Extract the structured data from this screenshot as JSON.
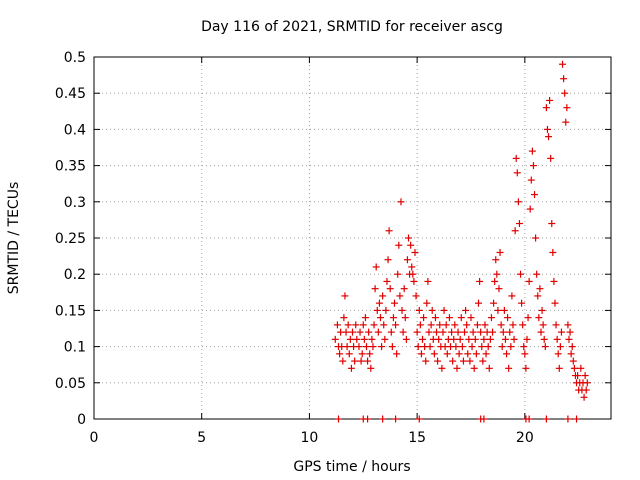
{
  "chart_data": {
    "type": "scatter",
    "title": "Day 116 of 2021, SRMTID for receiver ascg",
    "xlabel": "GPS time / hours",
    "ylabel": "SRMTID / TECUs",
    "xlim": [
      0,
      24
    ],
    "ylim": [
      0,
      0.5
    ],
    "x_ticks": [
      0,
      5,
      10,
      15,
      20
    ],
    "x_tick_labels": [
      "0",
      "5",
      "10",
      "15",
      "20"
    ],
    "y_ticks": [
      0,
      0.05,
      0.1,
      0.15,
      0.2,
      0.25,
      0.3,
      0.35,
      0.4,
      0.45,
      0.5
    ],
    "y_tick_labels": [
      "0",
      "0.05",
      "0.1",
      "0.15",
      "0.2",
      "0.25",
      "0.3",
      "0.35",
      "0.4",
      "0.45",
      "0.5"
    ],
    "grid": true,
    "marker": "plus",
    "color": "#e00000",
    "series": [
      {
        "name": "SRMTID",
        "points": [
          [
            11.2,
            0.11
          ],
          [
            11.3,
            0.13
          ],
          [
            11.35,
            0.1
          ],
          [
            11.4,
            0.09
          ],
          [
            11.45,
            0.12
          ],
          [
            11.5,
            0.1
          ],
          [
            11.55,
            0.08
          ],
          [
            11.6,
            0.14
          ],
          [
            11.65,
            0.17
          ],
          [
            11.7,
            0.12
          ],
          [
            11.75,
            0.1
          ],
          [
            11.8,
            0.13
          ],
          [
            11.85,
            0.09
          ],
          [
            11.9,
            0.11
          ],
          [
            11.95,
            0.07
          ],
          [
            12.0,
            0.12
          ],
          [
            12.05,
            0.1
          ],
          [
            12.1,
            0.08
          ],
          [
            12.15,
            0.13
          ],
          [
            12.2,
            0.11
          ],
          [
            12.3,
            0.1
          ],
          [
            12.35,
            0.12
          ],
          [
            12.4,
            0.08
          ],
          [
            12.45,
            0.09
          ],
          [
            12.5,
            0.13
          ],
          [
            12.55,
            0.11
          ],
          [
            12.6,
            0.14
          ],
          [
            12.65,
            0.1
          ],
          [
            12.7,
            0.08
          ],
          [
            12.75,
            0.12
          ],
          [
            12.8,
            0.09
          ],
          [
            12.85,
            0.07
          ],
          [
            12.9,
            0.11
          ],
          [
            12.95,
            0.1
          ],
          [
            13.0,
            0.13
          ],
          [
            13.05,
            0.18
          ],
          [
            13.1,
            0.21
          ],
          [
            13.15,
            0.15
          ],
          [
            13.2,
            0.12
          ],
          [
            13.25,
            0.16
          ],
          [
            13.3,
            0.14
          ],
          [
            13.35,
            0.1
          ],
          [
            13.4,
            0.17
          ],
          [
            13.45,
            0.13
          ],
          [
            13.5,
            0.11
          ],
          [
            13.55,
            0.15
          ],
          [
            13.6,
            0.19
          ],
          [
            13.65,
            0.22
          ],
          [
            13.7,
            0.26
          ],
          [
            13.75,
            0.18
          ],
          [
            13.8,
            0.12
          ],
          [
            13.85,
            0.1
          ],
          [
            13.9,
            0.14
          ],
          [
            13.95,
            0.16
          ],
          [
            14.0,
            0.13
          ],
          [
            14.05,
            0.09
          ],
          [
            14.1,
            0.2
          ],
          [
            14.15,
            0.24
          ],
          [
            14.2,
            0.17
          ],
          [
            14.25,
            0.3
          ],
          [
            14.3,
            0.15
          ],
          [
            14.35,
            0.12
          ],
          [
            14.4,
            0.18
          ],
          [
            14.45,
            0.14
          ],
          [
            14.5,
            0.11
          ],
          [
            14.55,
            0.22
          ],
          [
            14.6,
            0.25
          ],
          [
            14.65,
            0.2
          ],
          [
            14.7,
            0.24
          ],
          [
            14.75,
            0.21
          ],
          [
            14.8,
            0.2
          ],
          [
            14.85,
            0.19
          ],
          [
            14.9,
            0.23
          ],
          [
            14.95,
            0.17
          ],
          [
            15.0,
            0.12
          ],
          [
            15.05,
            0.1
          ],
          [
            15.1,
            0.15
          ],
          [
            15.15,
            0.13
          ],
          [
            15.2,
            0.09
          ],
          [
            15.25,
            0.11
          ],
          [
            15.3,
            0.14
          ],
          [
            15.35,
            0.1
          ],
          [
            15.4,
            0.08
          ],
          [
            15.45,
            0.16
          ],
          [
            15.5,
            0.19
          ],
          [
            15.55,
            0.12
          ],
          [
            15.6,
            0.1
          ],
          [
            15.65,
            0.13
          ],
          [
            15.7,
            0.15
          ],
          [
            15.75,
            0.11
          ],
          [
            15.8,
            0.09
          ],
          [
            15.85,
            0.14
          ],
          [
            15.9,
            0.12
          ],
          [
            15.95,
            0.08
          ],
          [
            16.0,
            0.11
          ],
          [
            16.05,
            0.13
          ],
          [
            16.1,
            0.1
          ],
          [
            16.15,
            0.07
          ],
          [
            16.2,
            0.12
          ],
          [
            16.25,
            0.15
          ],
          [
            16.3,
            0.1
          ],
          [
            16.35,
            0.13
          ],
          [
            16.4,
            0.09
          ],
          [
            16.45,
            0.11
          ],
          [
            16.5,
            0.14
          ],
          [
            16.55,
            0.1
          ],
          [
            16.6,
            0.12
          ],
          [
            16.65,
            0.08
          ],
          [
            16.7,
            0.11
          ],
          [
            16.75,
            0.13
          ],
          [
            16.8,
            0.1
          ],
          [
            16.85,
            0.07
          ],
          [
            16.9,
            0.12
          ],
          [
            16.95,
            0.09
          ],
          [
            17.0,
            0.11
          ],
          [
            17.05,
            0.14
          ],
          [
            17.1,
            0.1
          ],
          [
            17.15,
            0.08
          ],
          [
            17.2,
            0.12
          ],
          [
            17.25,
            0.15
          ],
          [
            17.3,
            0.13
          ],
          [
            17.35,
            0.09
          ],
          [
            17.4,
            0.11
          ],
          [
            17.45,
            0.08
          ],
          [
            17.5,
            0.14
          ],
          [
            17.55,
            0.1
          ],
          [
            17.6,
            0.12
          ],
          [
            17.65,
            0.07
          ],
          [
            17.7,
            0.11
          ],
          [
            17.75,
            0.09
          ],
          [
            17.8,
            0.13
          ],
          [
            17.85,
            0.16
          ],
          [
            17.9,
            0.19
          ],
          [
            17.95,
            0.12
          ],
          [
            18.0,
            0.1
          ],
          [
            18.05,
            0.08
          ],
          [
            18.1,
            0.11
          ],
          [
            18.15,
            0.13
          ],
          [
            18.2,
            0.09
          ],
          [
            18.25,
            0.12
          ],
          [
            18.3,
            0.1
          ],
          [
            18.35,
            0.07
          ],
          [
            18.4,
            0.11
          ],
          [
            18.45,
            0.14
          ],
          [
            18.5,
            0.12
          ],
          [
            18.55,
            0.16
          ],
          [
            18.6,
            0.19
          ],
          [
            18.65,
            0.22
          ],
          [
            18.7,
            0.2
          ],
          [
            18.75,
            0.15
          ],
          [
            18.8,
            0.18
          ],
          [
            18.85,
            0.23
          ],
          [
            18.9,
            0.13
          ],
          [
            18.95,
            0.1
          ],
          [
            19.0,
            0.12
          ],
          [
            19.05,
            0.15
          ],
          [
            19.1,
            0.11
          ],
          [
            19.15,
            0.09
          ],
          [
            19.2,
            0.14
          ],
          [
            19.25,
            0.07
          ],
          [
            19.3,
            0.12
          ],
          [
            19.35,
            0.1
          ],
          [
            19.4,
            0.17
          ],
          [
            19.45,
            0.13
          ],
          [
            19.5,
            0.11
          ],
          [
            19.55,
            0.26
          ],
          [
            19.6,
            0.36
          ],
          [
            19.65,
            0.34
          ],
          [
            19.7,
            0.3
          ],
          [
            19.75,
            0.27
          ],
          [
            19.8,
            0.2
          ],
          [
            19.85,
            0.16
          ],
          [
            19.9,
            0.13
          ],
          [
            19.95,
            0.1
          ],
          [
            20.0,
            0.09
          ],
          [
            20.05,
            0.07
          ],
          [
            20.1,
            0.11
          ],
          [
            20.15,
            0.14
          ],
          [
            20.2,
            0.19
          ],
          [
            20.25,
            0.29
          ],
          [
            20.3,
            0.33
          ],
          [
            20.35,
            0.37
          ],
          [
            20.4,
            0.35
          ],
          [
            20.45,
            0.31
          ],
          [
            20.5,
            0.25
          ],
          [
            20.55,
            0.2
          ],
          [
            20.6,
            0.17
          ],
          [
            20.65,
            0.14
          ],
          [
            20.7,
            0.18
          ],
          [
            20.75,
            0.12
          ],
          [
            20.8,
            0.15
          ],
          [
            20.85,
            0.13
          ],
          [
            20.9,
            0.11
          ],
          [
            20.95,
            0.1
          ],
          [
            21.0,
            0.43
          ],
          [
            21.05,
            0.4
          ],
          [
            21.1,
            0.39
          ],
          [
            21.15,
            0.44
          ],
          [
            21.2,
            0.36
          ],
          [
            21.25,
            0.27
          ],
          [
            21.3,
            0.23
          ],
          [
            21.35,
            0.19
          ],
          [
            21.4,
            0.16
          ],
          [
            21.45,
            0.13
          ],
          [
            21.5,
            0.11
          ],
          [
            21.55,
            0.09
          ],
          [
            21.6,
            0.07
          ],
          [
            21.65,
            0.1
          ],
          [
            21.7,
            0.12
          ],
          [
            21.75,
            0.49
          ],
          [
            21.8,
            0.47
          ],
          [
            21.85,
            0.45
          ],
          [
            21.9,
            0.41
          ],
          [
            21.95,
            0.43
          ],
          [
            22.0,
            0.13
          ],
          [
            22.05,
            0.11
          ],
          [
            22.1,
            0.12
          ],
          [
            22.15,
            0.09
          ],
          [
            22.2,
            0.1
          ],
          [
            22.25,
            0.08
          ],
          [
            22.3,
            0.07
          ],
          [
            22.35,
            0.06
          ],
          [
            22.4,
            0.05
          ],
          [
            22.45,
            0.06
          ],
          [
            22.5,
            0.04
          ],
          [
            22.55,
            0.05
          ],
          [
            22.6,
            0.07
          ],
          [
            22.65,
            0.04
          ],
          [
            22.7,
            0.05
          ],
          [
            22.75,
            0.03
          ],
          [
            22.8,
            0.06
          ],
          [
            22.85,
            0.04
          ],
          [
            22.9,
            0.05
          ],
          [
            11.35,
            0.0
          ],
          [
            12.5,
            0.0
          ],
          [
            12.7,
            0.0
          ],
          [
            13.4,
            0.0
          ],
          [
            14.0,
            0.0
          ],
          [
            15.1,
            0.0
          ],
          [
            17.95,
            0.0
          ],
          [
            18.1,
            0.0
          ],
          [
            20.05,
            0.0
          ],
          [
            20.2,
            0.0
          ],
          [
            21.0,
            0.0
          ],
          [
            22.0,
            0.0
          ],
          [
            22.4,
            0.0
          ]
        ]
      }
    ]
  }
}
